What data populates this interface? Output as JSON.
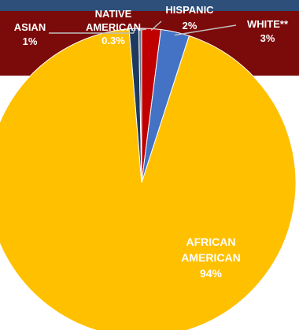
{
  "chart_data": {
    "type": "pie",
    "slices": [
      {
        "label_lines": [
          "AFRICAN",
          "AMERICAN"
        ],
        "value_text": "94%",
        "value": 94,
        "color": "#ffc000",
        "label_color": "#ffffff"
      },
      {
        "label_lines": [
          "ASIAN"
        ],
        "value_text": "1%",
        "value": 1,
        "color": "#1f3a5f",
        "label_color": "#ffffff"
      },
      {
        "label_lines": [
          "NATIVE",
          "AMERICAN"
        ],
        "value_text": "0.3%",
        "value": 0.3,
        "color": "#6a7b8e",
        "label_color": "#ffffff"
      },
      {
        "label_lines": [
          "HISPANIC"
        ],
        "value_text": "2%",
        "value": 2,
        "color": "#c00000",
        "label_color": "#ffffff"
      },
      {
        "label_lines": [
          "WHITE**"
        ],
        "value_text": "3%",
        "value": 3,
        "color": "#4472c4",
        "label_color": "#ffffff"
      }
    ]
  },
  "colors": {
    "banner_top": "#2d4f7a",
    "banner_red": "#7b0a0a",
    "leader_line": "#bfbfbf"
  }
}
